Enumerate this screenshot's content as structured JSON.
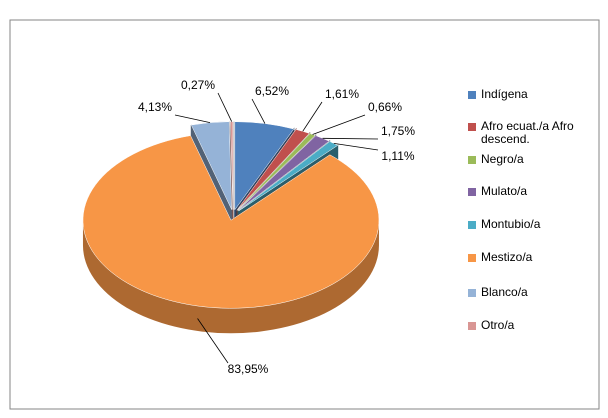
{
  "chart_data": {
    "type": "pie",
    "categories": [
      "Indígena",
      "Afro ecuat./a Afro descend.",
      "Negro/a",
      "Mulato/a",
      "Montubio/a",
      "Mestizo/a",
      "Blanco/a",
      "Otro/a"
    ],
    "values": [
      6.52,
      1.61,
      0.66,
      1.75,
      1.11,
      83.95,
      4.13,
      0.27
    ],
    "value_labels": [
      "6,52%",
      "1,61%",
      "0,66%",
      "1,75%",
      "1,11%",
      "83,95%",
      "4,13%",
      "0,27%"
    ],
    "colors": [
      "#4f81bd",
      "#c0504d",
      "#9bbb59",
      "#8064a2",
      "#4bacc6",
      "#f79646",
      "#95b3d7",
      "#d99694"
    ],
    "legend": "right"
  }
}
